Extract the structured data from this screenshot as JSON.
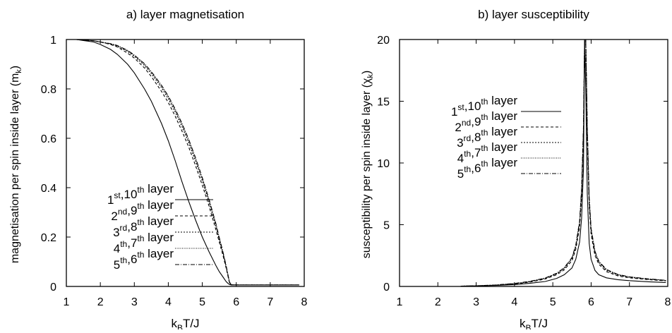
{
  "chart_data": [
    {
      "panel": "a",
      "type": "line",
      "title": "a) layer magnetisation",
      "xlabel": {
        "text": "k",
        "sub": "B",
        "rest": "T/J"
      },
      "ylabel": {
        "text": "magnetisation per spin inside layer (m",
        "sub": "k",
        "rest": ")"
      },
      "xlim": [
        1,
        8
      ],
      "ylim": [
        0,
        1
      ],
      "xticks": [
        "1",
        "2",
        "3",
        "4",
        "5",
        "6",
        "7",
        "8"
      ],
      "yticks": [
        "0",
        "0.2",
        "0.4",
        "0.6",
        "0.8",
        "1"
      ],
      "ytick_values": [
        0,
        0.2,
        0.4,
        0.6,
        0.8,
        1
      ],
      "grid": false,
      "legend_position": "bottom-left",
      "series": [
        {
          "name": "1st,10th layer",
          "label": [
            {
              "t": "1"
            },
            {
              "t": "st",
              "sup": true
            },
            {
              "t": ","
            },
            {
              "t": "10"
            },
            {
              "t": "th",
              "sup": true
            },
            {
              "t": " layer"
            }
          ],
          "dash": "",
          "x": [
            1.3,
            1.5,
            1.8,
            2.0,
            2.3,
            2.5,
            2.8,
            3.0,
            3.3,
            3.5,
            3.8,
            4.0,
            4.2,
            4.4,
            4.6,
            4.8,
            5.0,
            5.2,
            5.4,
            5.5,
            5.6,
            5.7,
            5.75,
            5.8,
            5.85,
            6.0,
            7.0,
            7.85
          ],
          "y": [
            1.0,
            0.996,
            0.99,
            0.98,
            0.96,
            0.94,
            0.9,
            0.865,
            0.8,
            0.75,
            0.66,
            0.59,
            0.51,
            0.425,
            0.345,
            0.27,
            0.2,
            0.14,
            0.085,
            0.06,
            0.04,
            0.02,
            0.013,
            0.008,
            0.006,
            0.006,
            0.006,
            0.006
          ]
        },
        {
          "name": "2nd,9th layer",
          "label": [
            {
              "t": "2"
            },
            {
              "t": "nd",
              "sup": true
            },
            {
              "t": ","
            },
            {
              "t": "9"
            },
            {
              "t": "th",
              "sup": true
            },
            {
              "t": " layer"
            }
          ],
          "dash": "4,3",
          "x": [
            1.3,
            1.5,
            1.8,
            2.0,
            2.3,
            2.5,
            2.8,
            3.0,
            3.3,
            3.5,
            3.8,
            4.0,
            4.2,
            4.4,
            4.6,
            4.8,
            5.0,
            5.2,
            5.4,
            5.5,
            5.6,
            5.7,
            5.75,
            5.8,
            5.85,
            6.0,
            7.0,
            7.85
          ],
          "y": [
            1.0,
            0.998,
            0.995,
            0.99,
            0.98,
            0.97,
            0.945,
            0.925,
            0.885,
            0.85,
            0.79,
            0.745,
            0.69,
            0.63,
            0.565,
            0.49,
            0.41,
            0.325,
            0.23,
            0.18,
            0.13,
            0.075,
            0.045,
            0.015,
            0.007,
            0.006,
            0.006,
            0.006
          ]
        },
        {
          "name": "3rd,8th layer",
          "label": [
            {
              "t": "3"
            },
            {
              "t": "rd",
              "sup": true
            },
            {
              "t": ","
            },
            {
              "t": "8"
            },
            {
              "t": "th",
              "sup": true
            },
            {
              "t": " layer"
            }
          ],
          "dash": "2,2",
          "x": [
            1.3,
            1.5,
            1.8,
            2.0,
            2.3,
            2.5,
            2.8,
            3.0,
            3.3,
            3.5,
            3.8,
            4.0,
            4.2,
            4.4,
            4.6,
            4.8,
            5.0,
            5.2,
            5.4,
            5.5,
            5.6,
            5.7,
            5.75,
            5.8,
            5.85,
            6.0,
            7.0,
            7.85
          ],
          "y": [
            1.0,
            0.998,
            0.995,
            0.99,
            0.982,
            0.973,
            0.952,
            0.932,
            0.895,
            0.862,
            0.805,
            0.76,
            0.707,
            0.648,
            0.583,
            0.508,
            0.428,
            0.34,
            0.245,
            0.19,
            0.138,
            0.08,
            0.048,
            0.016,
            0.007,
            0.006,
            0.006,
            0.006
          ]
        },
        {
          "name": "4th,7th layer",
          "label": [
            {
              "t": "4"
            },
            {
              "t": "th",
              "sup": true
            },
            {
              "t": ","
            },
            {
              "t": "7"
            },
            {
              "t": "th",
              "sup": true
            },
            {
              "t": " layer"
            }
          ],
          "dash": "1,1.5",
          "x": [
            1.3,
            1.5,
            1.8,
            2.0,
            2.3,
            2.5,
            2.8,
            3.0,
            3.3,
            3.5,
            3.8,
            4.0,
            4.2,
            4.4,
            4.6,
            4.8,
            5.0,
            5.2,
            5.4,
            5.5,
            5.6,
            5.7,
            5.75,
            5.8,
            5.85,
            6.0,
            7.0,
            7.85
          ],
          "y": [
            1.0,
            0.998,
            0.995,
            0.99,
            0.983,
            0.975,
            0.955,
            0.936,
            0.9,
            0.868,
            0.812,
            0.768,
            0.715,
            0.657,
            0.592,
            0.518,
            0.437,
            0.348,
            0.252,
            0.196,
            0.142,
            0.083,
            0.05,
            0.017,
            0.007,
            0.006,
            0.006,
            0.006
          ]
        },
        {
          "name": "5th,6th layer",
          "label": [
            {
              "t": "5"
            },
            {
              "t": "th",
              "sup": true
            },
            {
              "t": ","
            },
            {
              "t": "6"
            },
            {
              "t": "th",
              "sup": true
            },
            {
              "t": " layer"
            }
          ],
          "dash": "6,2,1,2",
          "x": [
            1.3,
            1.5,
            1.8,
            2.0,
            2.3,
            2.5,
            2.8,
            3.0,
            3.3,
            3.5,
            3.8,
            4.0,
            4.2,
            4.4,
            4.6,
            4.8,
            5.0,
            5.2,
            5.4,
            5.5,
            5.6,
            5.7,
            5.75,
            5.8,
            5.85,
            6.0,
            7.0,
            7.85
          ],
          "y": [
            1.0,
            0.998,
            0.995,
            0.99,
            0.983,
            0.976,
            0.956,
            0.937,
            0.902,
            0.87,
            0.815,
            0.771,
            0.719,
            0.661,
            0.596,
            0.522,
            0.441,
            0.352,
            0.255,
            0.199,
            0.144,
            0.085,
            0.051,
            0.018,
            0.007,
            0.006,
            0.006,
            0.006
          ]
        }
      ]
    },
    {
      "panel": "b",
      "type": "line",
      "title": "b) layer susceptibility",
      "xlabel": {
        "text": "k",
        "sub": "B",
        "rest": "T/J"
      },
      "ylabel": {
        "text": "susceptibility per spin inside layer (χ",
        "sub": "k",
        "rest": ")"
      },
      "xlim": [
        1,
        8
      ],
      "ylim": [
        0,
        20
      ],
      "xticks": [
        "1",
        "2",
        "3",
        "4",
        "5",
        "6",
        "7",
        "8"
      ],
      "yticks": [
        "0",
        "5",
        "10",
        "15",
        "20"
      ],
      "ytick_values": [
        0,
        5,
        10,
        15,
        20
      ],
      "grid": false,
      "legend_position": "top-left",
      "series": [
        {
          "name": "1st,10th layer",
          "label": [
            {
              "t": "1"
            },
            {
              "t": "st",
              "sup": true
            },
            {
              "t": ","
            },
            {
              "t": "10"
            },
            {
              "t": "th",
              "sup": true
            },
            {
              "t": " layer"
            }
          ],
          "dash": "",
          "x": [
            2.6,
            3.0,
            3.5,
            4.0,
            4.4,
            4.8,
            5.1,
            5.3,
            5.5,
            5.6,
            5.7,
            5.75,
            5.8,
            5.83,
            5.86,
            5.9,
            5.95,
            6.0,
            6.1,
            6.2,
            6.4,
            6.7,
            7.0,
            7.5,
            7.95
          ],
          "y": [
            0.02,
            0.04,
            0.08,
            0.15,
            0.25,
            0.4,
            0.65,
            0.95,
            1.5,
            2.2,
            3.6,
            5.5,
            9.5,
            20,
            16,
            7.5,
            3.5,
            2.2,
            1.3,
            0.95,
            0.7,
            0.55,
            0.47,
            0.38,
            0.32
          ]
        },
        {
          "name": "2nd,9th layer",
          "label": [
            {
              "t": "2"
            },
            {
              "t": "nd",
              "sup": true
            },
            {
              "t": ","
            },
            {
              "t": "9"
            },
            {
              "t": "th",
              "sup": true
            },
            {
              "t": " layer"
            }
          ],
          "dash": "4,3",
          "x": [
            2.6,
            3.0,
            3.5,
            4.0,
            4.4,
            4.8,
            5.1,
            5.3,
            5.5,
            5.6,
            5.7,
            5.75,
            5.8,
            5.83,
            5.86,
            5.9,
            5.95,
            6.0,
            6.1,
            6.2,
            6.4,
            6.7,
            7.0,
            7.5,
            7.95
          ],
          "y": [
            0.02,
            0.05,
            0.1,
            0.2,
            0.35,
            0.6,
            0.95,
            1.35,
            2.1,
            3.0,
            4.8,
            7.2,
            12,
            20,
            20,
            12,
            6.5,
            4.2,
            2.5,
            1.8,
            1.2,
            0.85,
            0.7,
            0.55,
            0.45
          ]
        },
        {
          "name": "3rd,8th layer",
          "label": [
            {
              "t": "3"
            },
            {
              "t": "rd",
              "sup": true
            },
            {
              "t": ","
            },
            {
              "t": "8"
            },
            {
              "t": "th",
              "sup": true
            },
            {
              "t": " layer"
            }
          ],
          "dash": "2,2",
          "x": [
            2.6,
            3.0,
            3.5,
            4.0,
            4.4,
            4.8,
            5.1,
            5.3,
            5.5,
            5.6,
            5.7,
            5.75,
            5.8,
            5.83,
            5.86,
            5.9,
            5.95,
            6.0,
            6.1,
            6.2,
            6.4,
            6.7,
            7.0,
            7.5,
            7.95
          ],
          "y": [
            0.02,
            0.05,
            0.11,
            0.22,
            0.38,
            0.65,
            1.02,
            1.45,
            2.25,
            3.2,
            5.1,
            7.6,
            12.5,
            20,
            20,
            12.5,
            6.9,
            4.5,
            2.7,
            1.95,
            1.3,
            0.92,
            0.75,
            0.58,
            0.48
          ]
        },
        {
          "name": "4th,7th layer",
          "label": [
            {
              "t": "4"
            },
            {
              "t": "th",
              "sup": true
            },
            {
              "t": ","
            },
            {
              "t": "7"
            },
            {
              "t": "th",
              "sup": true
            },
            {
              "t": " layer"
            }
          ],
          "dash": "1,1.5",
          "x": [
            2.6,
            3.0,
            3.5,
            4.0,
            4.4,
            4.8,
            5.1,
            5.3,
            5.5,
            5.6,
            5.7,
            5.75,
            5.8,
            5.83,
            5.86,
            5.9,
            5.95,
            6.0,
            6.1,
            6.2,
            6.4,
            6.7,
            7.0,
            7.5,
            7.95
          ],
          "y": [
            0.02,
            0.05,
            0.11,
            0.23,
            0.4,
            0.67,
            1.05,
            1.5,
            2.3,
            3.3,
            5.2,
            7.8,
            12.8,
            20,
            20,
            12.8,
            7.1,
            4.6,
            2.8,
            2.0,
            1.35,
            0.95,
            0.77,
            0.6,
            0.49
          ]
        },
        {
          "name": "5th,6th layer",
          "label": [
            {
              "t": "5"
            },
            {
              "t": "th",
              "sup": true
            },
            {
              "t": ","
            },
            {
              "t": "6"
            },
            {
              "t": "th",
              "sup": true
            },
            {
              "t": " layer"
            }
          ],
          "dash": "6,2,1,2",
          "x": [
            2.6,
            3.0,
            3.5,
            4.0,
            4.4,
            4.8,
            5.1,
            5.3,
            5.5,
            5.6,
            5.7,
            5.75,
            5.8,
            5.83,
            5.86,
            5.9,
            5.95,
            6.0,
            6.1,
            6.2,
            6.4,
            6.7,
            7.0,
            7.5,
            7.95
          ],
          "y": [
            0.02,
            0.05,
            0.12,
            0.24,
            0.41,
            0.68,
            1.07,
            1.52,
            2.35,
            3.35,
            5.3,
            7.9,
            13,
            20,
            20,
            13,
            7.2,
            4.7,
            2.85,
            2.05,
            1.38,
            0.97,
            0.78,
            0.61,
            0.5
          ]
        }
      ]
    }
  ]
}
